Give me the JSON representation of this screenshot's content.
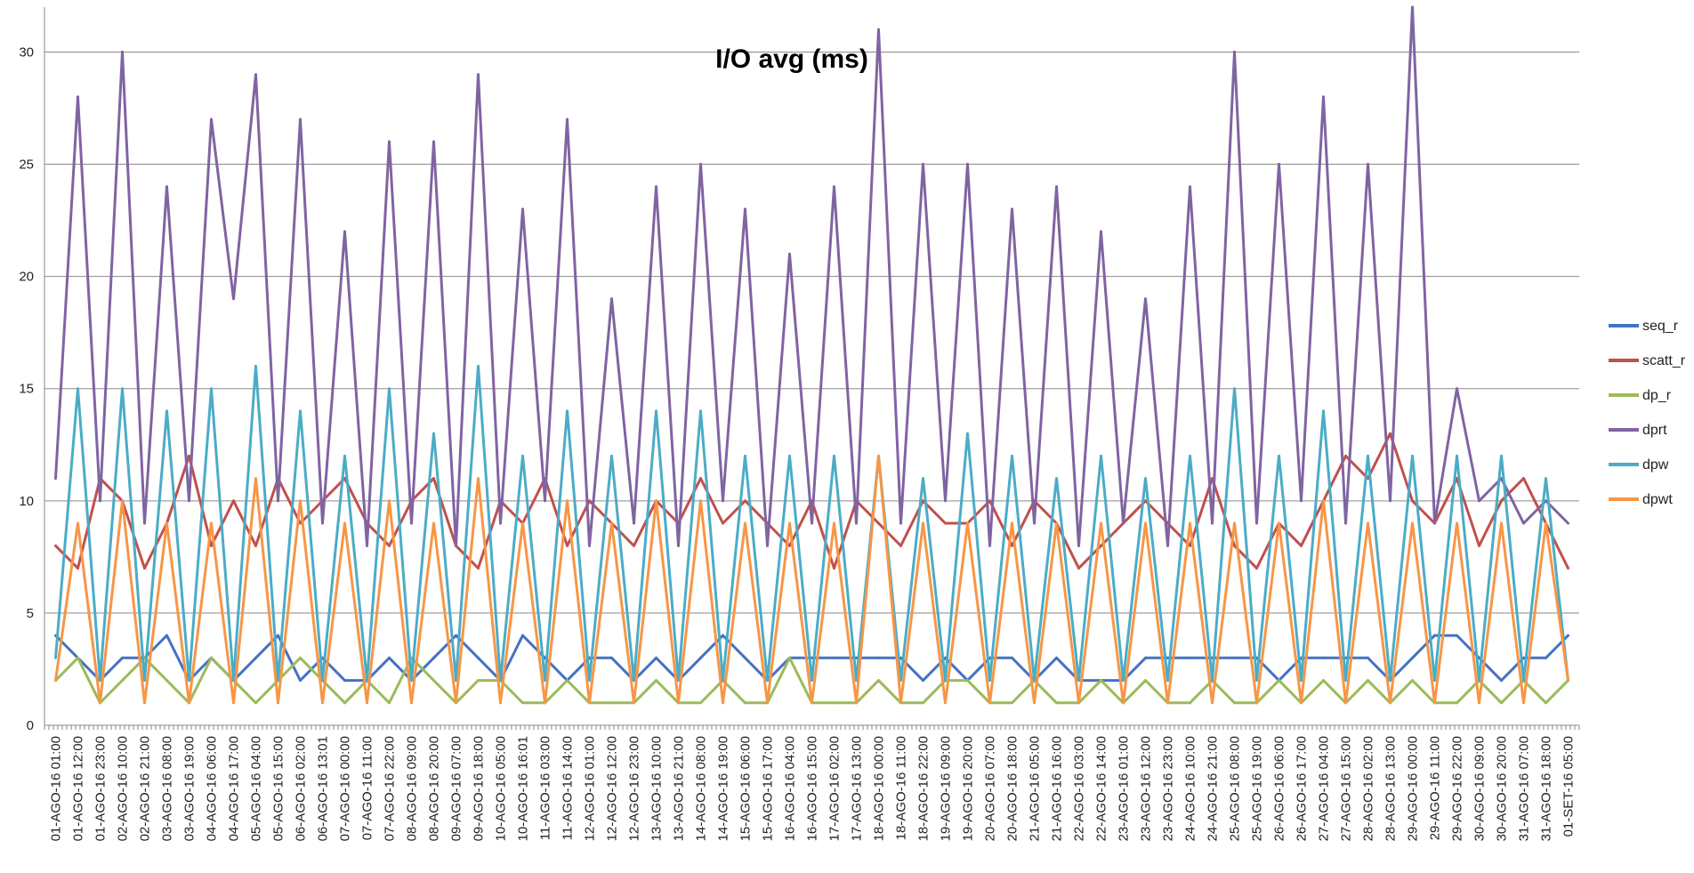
{
  "chart_data": {
    "type": "line",
    "title": "I/O avg (ms)",
    "xlabel": "",
    "ylabel": "",
    "ylim": [
      0,
      32
    ],
    "yticks": [
      0,
      5,
      10,
      15,
      20,
      25,
      30
    ],
    "grid": "horizontal",
    "legend_position": "right",
    "x_tick_labels": [
      "01-AGO-16 01:00",
      "01-AGO-16 12:00",
      "01-AGO-16 23:00",
      "02-AGO-16 10:00",
      "02-AGO-16 21:00",
      "03-AGO-16 08:00",
      "03-AGO-16 19:00",
      "04-AGO-16 06:00",
      "04-AGO-16 17:00",
      "05-AGO-16 04:00",
      "05-AGO-16 15:00",
      "06-AGO-16 02:00",
      "06-AGO-16 13:01",
      "07-AGO-16 00:00",
      "07-AGO-16 11:00",
      "07-AGO-16 22:00",
      "08-AGO-16 09:00",
      "08-AGO-16 20:00",
      "09-AGO-16 07:00",
      "09-AGO-16 18:00",
      "10-AGO-16 05:00",
      "10-AGO-16 16:01",
      "11-AGO-16 03:00",
      "11-AGO-16 14:00",
      "12-AGO-16 01:00",
      "12-AGO-16 12:00",
      "12-AGO-16 23:00",
      "13-AGO-16 10:00",
      "13-AGO-16 21:00",
      "14-AGO-16 08:00",
      "14-AGO-16 19:00",
      "15-AGO-16 06:00",
      "15-AGO-16 17:00",
      "16-AGO-16 04:00",
      "16-AGO-16 15:00",
      "17-AGO-16 02:00",
      "17-AGO-16 13:00",
      "18-AGO-16 00:00",
      "18-AGO-16 11:00",
      "18-AGO-16 22:00",
      "19-AGO-16 09:00",
      "19-AGO-16 20:00",
      "20-AGO-16 07:00",
      "20-AGO-16 18:00",
      "21-AGO-16 05:00",
      "21-AGO-16 16:00",
      "22-AGO-16 03:00",
      "22-AGO-16 14:00",
      "23-AGO-16 01:00",
      "23-AGO-16 12:00",
      "23-AGO-16 23:00",
      "24-AGO-16 10:00",
      "24-AGO-16 21:00",
      "25-AGO-16 08:00",
      "25-AGO-16 19:00",
      "26-AGO-16 06:00",
      "26-AGO-16 17:00",
      "27-AGO-16 04:00",
      "27-AGO-16 15:00",
      "28-AGO-16 02:00",
      "28-AGO-16 13:00",
      "29-AGO-16 00:00",
      "29-AGO-16 11:00",
      "29-AGO-16 22:00",
      "30-AGO-16 09:00",
      "30-AGO-16 20:00",
      "31-AGO-16 07:00",
      "31-AGO-16 18:00",
      "01-SET-16 05:00"
    ],
    "series": [
      {
        "name": "seq_r",
        "color": "#4472C4",
        "values": [
          4,
          3,
          2,
          3,
          3,
          4,
          2,
          3,
          2,
          3,
          4,
          2,
          3,
          2,
          2,
          3,
          2,
          3,
          4,
          3,
          2,
          4,
          3,
          2,
          3,
          3,
          2,
          3,
          2,
          3,
          4,
          3,
          2,
          3,
          3,
          3,
          3,
          3,
          3,
          2,
          3,
          2,
          3,
          3,
          2,
          3,
          2,
          2,
          2,
          3,
          3,
          3,
          3,
          3,
          3,
          2,
          3,
          3,
          3,
          3,
          2,
          3,
          4,
          4,
          3,
          2,
          3,
          3,
          4
        ]
      },
      {
        "name": "scatt_r",
        "color": "#C0504D",
        "values": [
          8,
          7,
          11,
          10,
          7,
          9,
          12,
          8,
          10,
          8,
          11,
          9,
          10,
          11,
          9,
          8,
          10,
          11,
          8,
          7,
          10,
          9,
          11,
          8,
          10,
          9,
          8,
          10,
          9,
          11,
          9,
          10,
          9,
          8,
          10,
          7,
          10,
          9,
          8,
          10,
          9,
          9,
          10,
          8,
          10,
          9,
          7,
          8,
          9,
          10,
          9,
          8,
          11,
          8,
          7,
          9,
          8,
          10,
          12,
          11,
          13,
          10,
          9,
          11,
          8,
          10,
          11,
          9,
          7
        ]
      },
      {
        "name": "dp_r",
        "color": "#9BBB59",
        "values": [
          2,
          3,
          1,
          2,
          3,
          2,
          1,
          3,
          2,
          1,
          2,
          3,
          2,
          1,
          2,
          1,
          3,
          2,
          1,
          2,
          2,
          1,
          1,
          2,
          1,
          1,
          1,
          2,
          1,
          1,
          2,
          1,
          1,
          3,
          1,
          1,
          1,
          2,
          1,
          1,
          2,
          2,
          1,
          1,
          2,
          1,
          1,
          2,
          1,
          2,
          1,
          1,
          2,
          1,
          1,
          2,
          1,
          2,
          1,
          2,
          1,
          2,
          1,
          1,
          2,
          1,
          2,
          1,
          2
        ]
      },
      {
        "name": "dprt",
        "color": "#8064A2",
        "values": [
          11,
          28,
          10,
          30,
          9,
          24,
          10,
          27,
          19,
          29,
          10,
          27,
          9,
          22,
          8,
          26,
          9,
          26,
          8,
          29,
          9,
          23,
          10,
          27,
          8,
          19,
          9,
          24,
          8,
          25,
          10,
          23,
          8,
          21,
          9,
          24,
          9,
          31,
          9,
          25,
          10,
          25,
          8,
          23,
          9,
          24,
          8,
          22,
          9,
          19,
          8,
          24,
          9,
          30,
          9,
          25,
          10,
          28,
          9,
          25,
          10,
          32,
          9,
          15,
          10,
          11,
          9,
          10,
          9
        ]
      },
      {
        "name": "dpw",
        "color": "#4BACC6",
        "values": [
          3,
          15,
          2,
          15,
          2,
          14,
          2,
          15,
          2,
          16,
          2,
          14,
          2,
          12,
          2,
          15,
          2,
          13,
          2,
          16,
          2,
          12,
          2,
          14,
          2,
          12,
          2,
          14,
          2,
          14,
          2,
          12,
          2,
          12,
          2,
          12,
          2,
          12,
          2,
          11,
          2,
          13,
          2,
          12,
          2,
          11,
          2,
          12,
          2,
          11,
          2,
          12,
          2,
          15,
          2,
          12,
          2,
          14,
          2,
          12,
          2,
          12,
          2,
          12,
          2,
          12,
          2,
          11,
          2
        ]
      },
      {
        "name": "dpwt",
        "color": "#F79646",
        "values": [
          2,
          9,
          1,
          10,
          1,
          9,
          1,
          9,
          1,
          11,
          1,
          10,
          1,
          9,
          1,
          10,
          1,
          9,
          1,
          11,
          1,
          9,
          1,
          10,
          1,
          9,
          1,
          10,
          1,
          10,
          1,
          9,
          1,
          9,
          1,
          9,
          1,
          12,
          1,
          9,
          1,
          9,
          1,
          9,
          1,
          9,
          1,
          9,
          1,
          9,
          1,
          9,
          1,
          9,
          1,
          9,
          1,
          10,
          1,
          9,
          1,
          9,
          1,
          9,
          1,
          9,
          1,
          9,
          2
        ]
      }
    ]
  }
}
